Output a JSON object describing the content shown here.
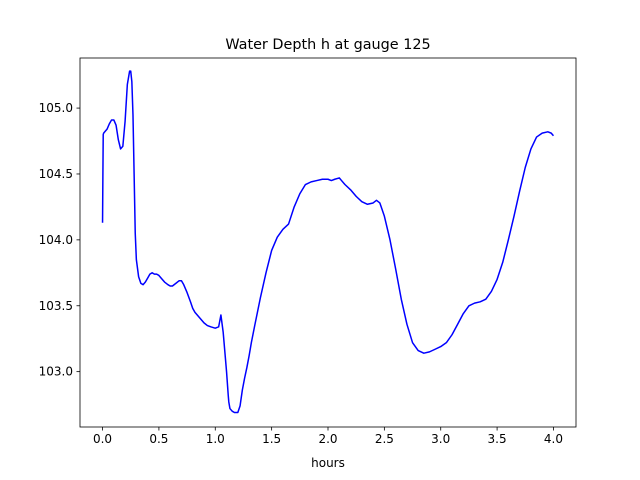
{
  "chart_data": {
    "type": "line",
    "title": "Water Depth h at gauge 125",
    "xlabel": "hours",
    "ylabel": "",
    "xlim": [
      -0.2,
      4.2
    ],
    "ylim": [
      102.58,
      105.38
    ],
    "xticks": [
      0.0,
      0.5,
      1.0,
      1.5,
      2.0,
      2.5,
      3.0,
      3.5,
      4.0
    ],
    "xtick_labels": [
      "0.0",
      "0.5",
      "1.0",
      "1.5",
      "2.0",
      "2.5",
      "3.0",
      "3.5",
      "4.0"
    ],
    "yticks": [
      103.0,
      103.5,
      104.0,
      104.5,
      105.0
    ],
    "ytick_labels": [
      "103.0",
      "103.5",
      "104.0",
      "104.5",
      "105.0"
    ],
    "grid": false,
    "color": "#0000ff",
    "series": [
      {
        "name": "",
        "x": [
          0.0,
          0.003,
          0.006,
          0.01,
          0.02,
          0.04,
          0.06,
          0.08,
          0.1,
          0.12,
          0.14,
          0.16,
          0.18,
          0.2,
          0.22,
          0.24,
          0.25,
          0.26,
          0.27,
          0.28,
          0.29,
          0.3,
          0.32,
          0.34,
          0.36,
          0.38,
          0.4,
          0.42,
          0.44,
          0.46,
          0.48,
          0.5,
          0.52,
          0.55,
          0.58,
          0.6,
          0.62,
          0.65,
          0.68,
          0.7,
          0.72,
          0.75,
          0.78,
          0.8,
          0.82,
          0.84,
          0.86,
          0.88,
          0.9,
          0.93,
          0.96,
          1.0,
          1.03,
          1.05,
          1.07,
          1.09,
          1.1,
          1.105,
          1.11,
          1.115,
          1.12,
          1.13,
          1.15,
          1.17,
          1.2,
          1.22,
          1.24,
          1.26,
          1.28,
          1.3,
          1.32,
          1.35,
          1.4,
          1.45,
          1.5,
          1.55,
          1.6,
          1.65,
          1.7,
          1.75,
          1.8,
          1.85,
          1.9,
          1.95,
          2.0,
          2.03,
          2.06,
          2.1,
          2.12,
          2.15,
          2.2,
          2.25,
          2.3,
          2.35,
          2.4,
          2.43,
          2.46,
          2.5,
          2.55,
          2.6,
          2.65,
          2.7,
          2.75,
          2.8,
          2.85,
          2.9,
          2.95,
          3.0,
          3.05,
          3.1,
          3.15,
          3.2,
          3.25,
          3.3,
          3.35,
          3.4,
          3.45,
          3.5,
          3.55,
          3.6,
          3.65,
          3.7,
          3.75,
          3.8,
          3.85,
          3.9,
          3.95,
          3.98,
          4.0
        ],
        "y": [
          104.13,
          104.48,
          104.8,
          104.81,
          104.82,
          104.84,
          104.88,
          104.91,
          104.91,
          104.87,
          104.76,
          104.69,
          104.71,
          104.9,
          105.18,
          105.28,
          105.28,
          105.2,
          104.95,
          104.5,
          104.05,
          103.85,
          103.72,
          103.67,
          103.66,
          103.68,
          103.71,
          103.74,
          103.75,
          103.74,
          103.74,
          103.73,
          103.71,
          103.68,
          103.66,
          103.65,
          103.65,
          103.67,
          103.69,
          103.69,
          103.66,
          103.6,
          103.53,
          103.48,
          103.45,
          103.43,
          103.41,
          103.39,
          103.37,
          103.35,
          103.34,
          103.33,
          103.34,
          103.43,
          103.3,
          103.1,
          103.0,
          102.94,
          102.88,
          102.82,
          102.77,
          102.72,
          102.7,
          102.69,
          102.69,
          102.74,
          102.86,
          102.95,
          103.03,
          103.12,
          103.22,
          103.35,
          103.56,
          103.75,
          103.92,
          104.02,
          104.08,
          104.12,
          104.25,
          104.35,
          104.42,
          104.44,
          104.45,
          104.46,
          104.46,
          104.45,
          104.46,
          104.47,
          104.45,
          104.42,
          104.38,
          104.33,
          104.29,
          104.27,
          104.28,
          104.3,
          104.28,
          104.18,
          104.0,
          103.78,
          103.55,
          103.36,
          103.22,
          103.16,
          103.14,
          103.15,
          103.17,
          103.19,
          103.22,
          103.28,
          103.36,
          103.44,
          103.5,
          103.52,
          103.53,
          103.55,
          103.61,
          103.7,
          103.83,
          104.0,
          104.18,
          104.37,
          104.55,
          104.69,
          104.78,
          104.81,
          104.82,
          104.81,
          104.79
        ]
      }
    ]
  }
}
